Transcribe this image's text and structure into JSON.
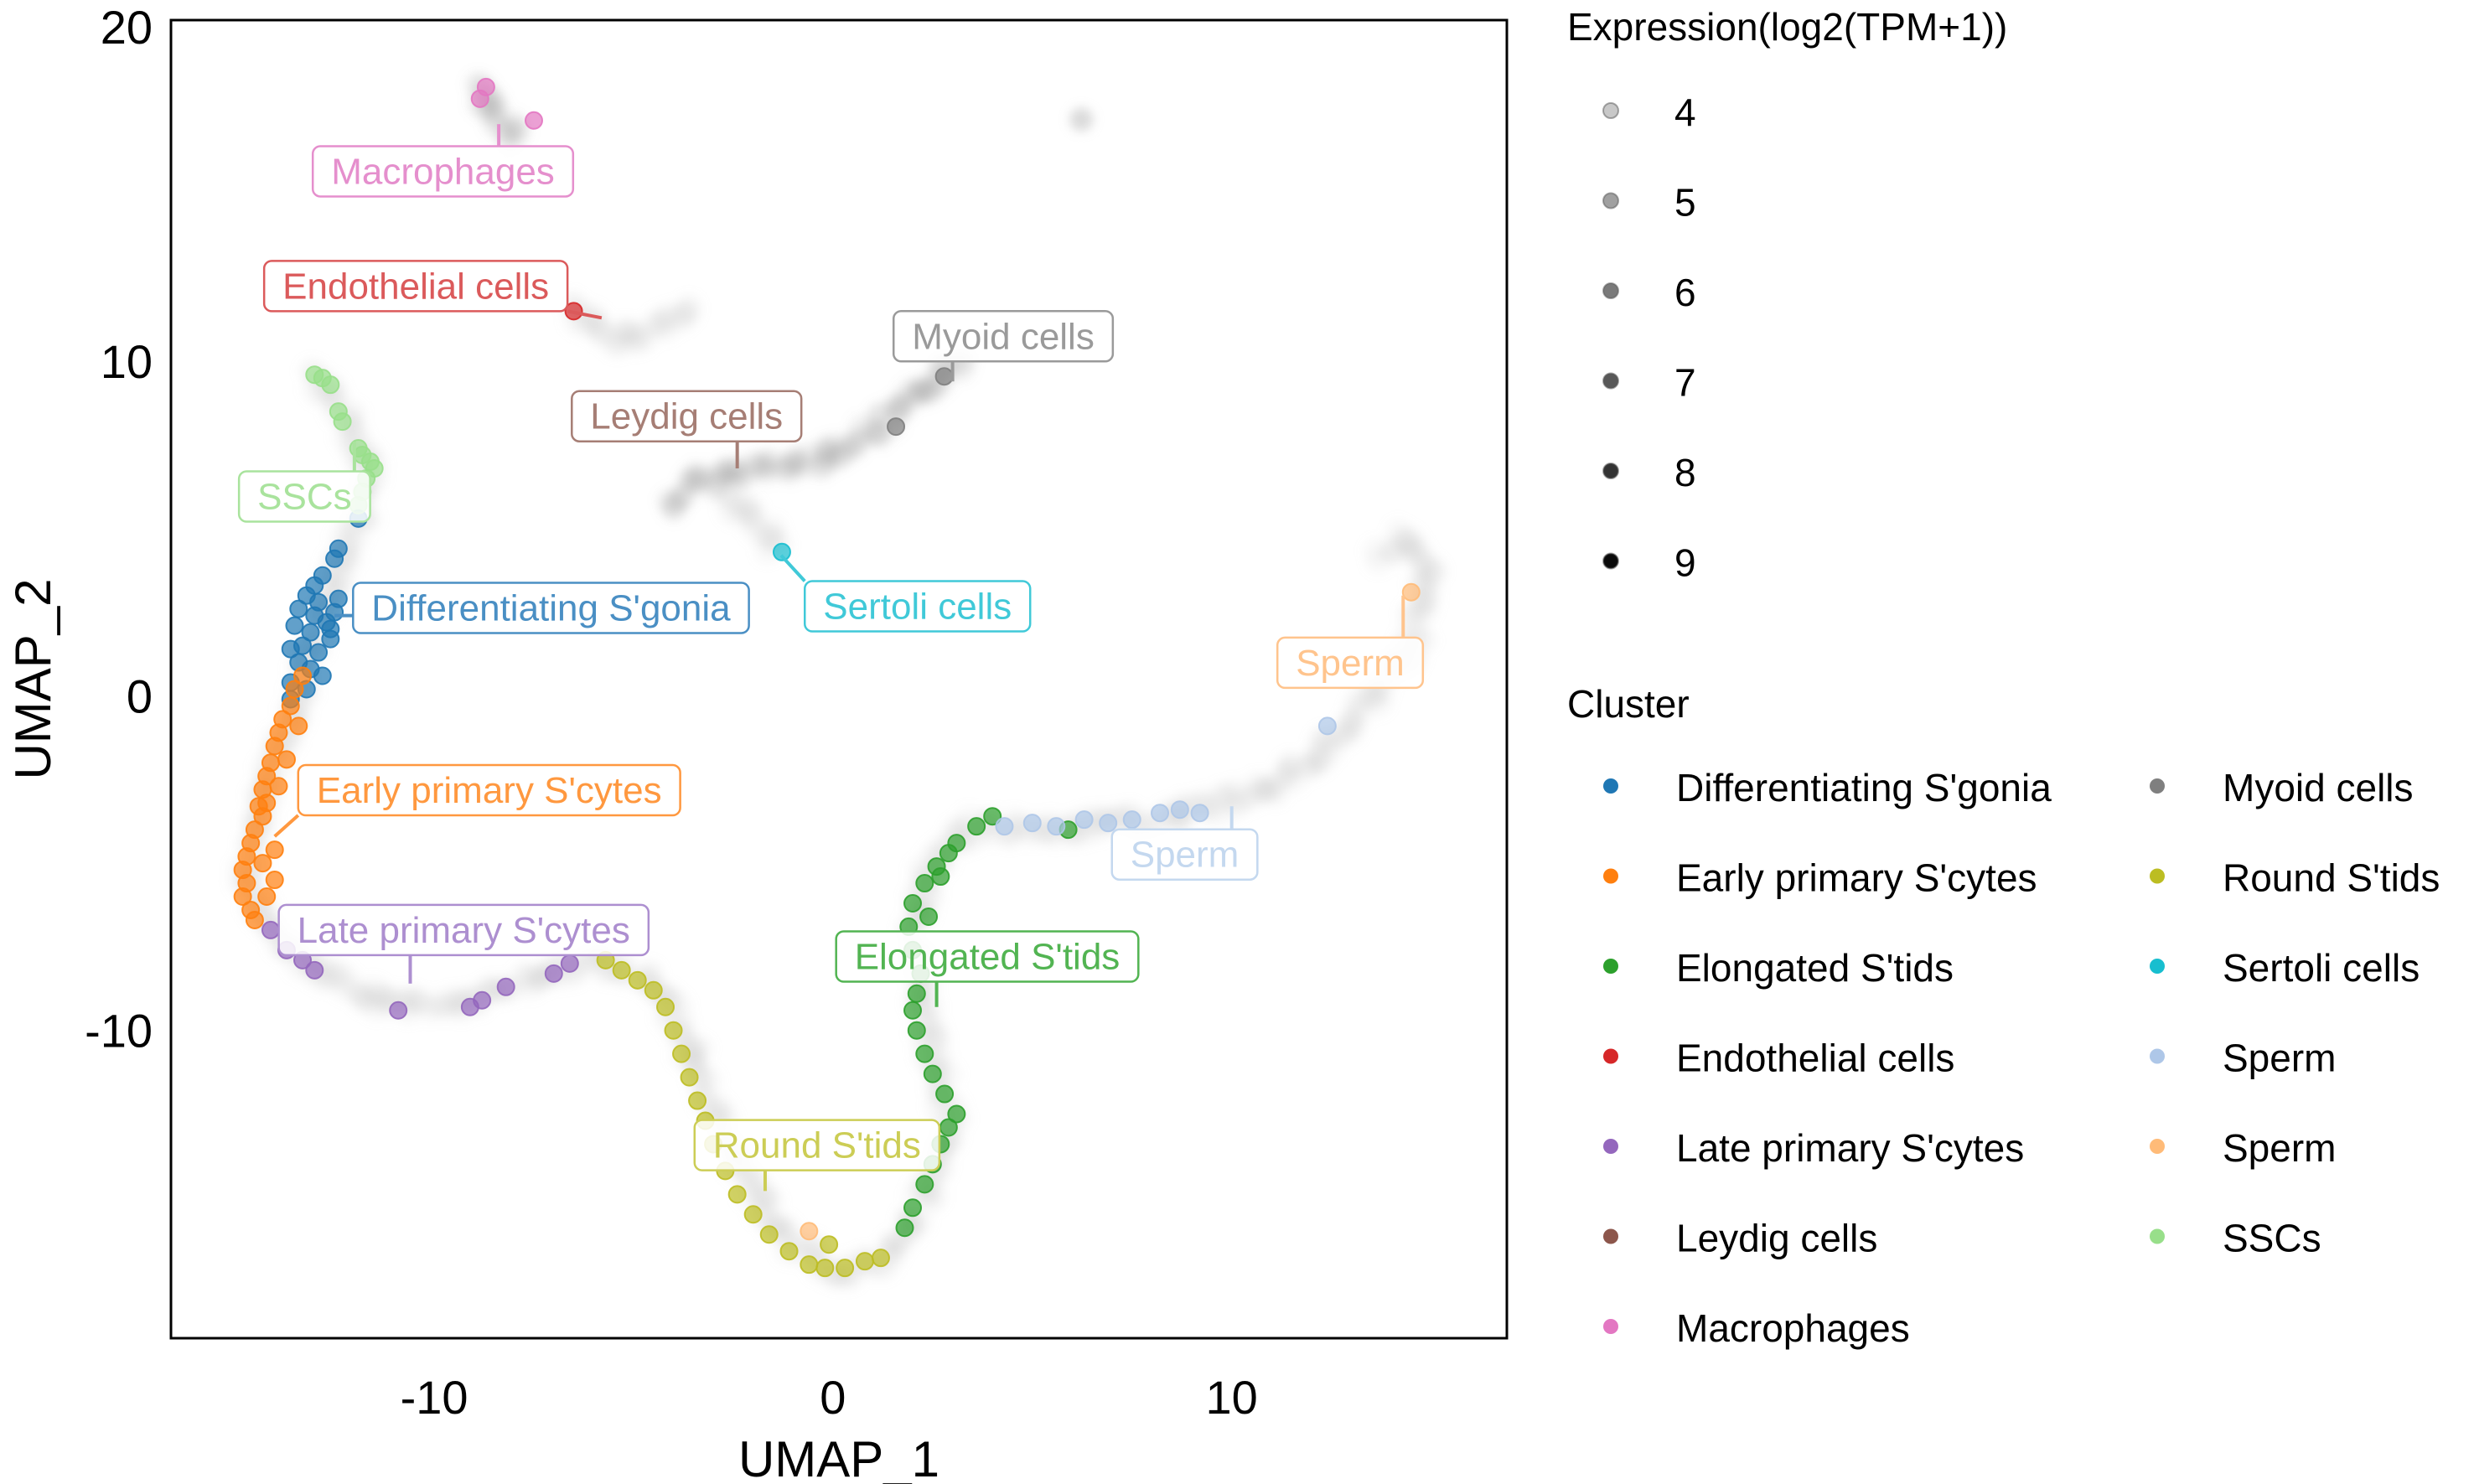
{
  "chart_data": {
    "type": "scatter",
    "title": "",
    "xlabel": "UMAP_1",
    "ylabel": "UMAP_2",
    "xlim": [
      -16.6,
      16.9
    ],
    "ylim": [
      -19.2,
      20.2
    ],
    "x_ticks": [
      -10,
      0,
      10
    ],
    "y_ticks": [
      -10,
      0,
      10,
      20
    ],
    "x_tick_labels": [
      "-10",
      "0",
      "10"
    ],
    "y_tick_labels": [
      "-10",
      "0",
      "10",
      "20"
    ],
    "grid": false,
    "legend_placement": "right",
    "size_legend": {
      "title": "Expression(log2(TPM+1))",
      "values": [
        4,
        5,
        6,
        7,
        8,
        9
      ],
      "labels": [
        "4",
        "5",
        "6",
        "7",
        "8",
        "9"
      ],
      "colors": [
        "#c8c8c8",
        "#a0a0a0",
        "#7a7a7a",
        "#585858",
        "#333333",
        "#0a0a0a"
      ]
    },
    "cluster_legend": {
      "title": "Cluster",
      "entries": [
        {
          "name": "Differentiating S'gonia",
          "color": "#1f77b4"
        },
        {
          "name": "Early primary S'cytes",
          "color": "#ff7f0e"
        },
        {
          "name": "Elongated S'tids",
          "color": "#2ca02c"
        },
        {
          "name": "Endothelial cells",
          "color": "#d62728"
        },
        {
          "name": "Late primary S'cytes",
          "color": "#9467bd"
        },
        {
          "name": "Leydig cells",
          "color": "#8c564b"
        },
        {
          "name": "Macrophages",
          "color": "#e377c2"
        },
        {
          "name": "Myoid cells",
          "color": "#7f7f7f"
        },
        {
          "name": "Round S'tids",
          "color": "#bcbd22"
        },
        {
          "name": "Sertoli cells",
          "color": "#17becf"
        },
        {
          "name": "Sperm",
          "color": "#aec7e8"
        },
        {
          "name": "Sperm",
          "color": "#ffbb78"
        },
        {
          "name": "SSCs",
          "color": "#98df8a"
        }
      ]
    },
    "background_trajectories": [
      {
        "name": "main-trajectory",
        "expression": 4,
        "points": [
          [
            -12.97,
            9.67
          ],
          [
            -12.3,
            8.4
          ],
          [
            -11.58,
            7.0
          ],
          [
            -11.9,
            5.35
          ],
          [
            -12.57,
            3.0
          ],
          [
            -13.37,
            0.19
          ],
          [
            -14.17,
            -2.63
          ],
          [
            -14.69,
            -5.45
          ],
          [
            -14.17,
            -6.85
          ],
          [
            -12.97,
            -8.26
          ],
          [
            -11.18,
            -9.2
          ],
          [
            -9.18,
            -9.2
          ],
          [
            -7.19,
            -8.26
          ],
          [
            -5.67,
            -7.93
          ],
          [
            -4.39,
            -8.73
          ],
          [
            -3.39,
            -11.08
          ],
          [
            -2.4,
            -13.9
          ],
          [
            -1.2,
            -16.24
          ],
          [
            0,
            -17.18
          ],
          [
            1.2,
            -16.95
          ],
          [
            2.2,
            -15.3
          ],
          [
            2.99,
            -12.96
          ],
          [
            2.59,
            -11.08
          ],
          [
            2.2,
            -8.73
          ],
          [
            2.08,
            -6.38
          ],
          [
            2.59,
            -4.74
          ],
          [
            3.59,
            -3.9
          ],
          [
            5.59,
            -4.04
          ],
          [
            8.78,
            -3.57
          ],
          [
            11.18,
            -2.63
          ],
          [
            13.17,
            -0.75
          ],
          [
            14.57,
            1.6
          ],
          [
            14.97,
            3.94
          ],
          [
            14.37,
            4.65
          ],
          [
            13.65,
            3.94
          ]
        ]
      },
      {
        "name": "leydig-myoid-trajectory",
        "expression": 5,
        "points": [
          [
            -3.99,
            5.6
          ],
          [
            -3.59,
            6.29
          ],
          [
            -2.79,
            6.6
          ],
          [
            -1.99,
            6.76
          ],
          [
            -1.0,
            6.9
          ],
          [
            0,
            7.23
          ],
          [
            1.4,
            8.17
          ],
          [
            2.79,
            9.58
          ],
          [
            3.39,
            10.14
          ]
        ]
      },
      {
        "name": "sertoli-branch",
        "expression": 4,
        "points": [
          [
            -2.6,
            6.0
          ],
          [
            -2.0,
            5.2
          ],
          [
            -1.28,
            4.32
          ]
        ]
      },
      {
        "name": "endothelial-trajectory",
        "expression": 4,
        "points": [
          [
            -6.47,
            11.69
          ],
          [
            -5.79,
            10.75
          ],
          [
            -4.79,
            10.75
          ],
          [
            -3.99,
            11.22
          ],
          [
            -3.51,
            11.69
          ]
        ]
      },
      {
        "name": "macrophage-trajectory",
        "expression": 5,
        "points": [
          [
            -8.78,
            18.26
          ],
          [
            -8.6,
            17.6
          ],
          [
            -8.38,
            17.09
          ],
          [
            -7.78,
            16.62
          ]
        ]
      },
      {
        "name": "isolated-cell",
        "expression": 4,
        "points": [
          [
            6.23,
            17.23
          ]
        ]
      }
    ],
    "series": [
      {
        "name": "Differentiating S'gonia",
        "color": "#1f77b4",
        "points": [
          [
            -12.4,
            4.4
          ],
          [
            -12.5,
            4.1
          ],
          [
            -12.8,
            3.6
          ],
          [
            -13.0,
            3.3
          ],
          [
            -13.2,
            3.0
          ],
          [
            -12.9,
            2.8
          ],
          [
            -13.4,
            2.6
          ],
          [
            -13.0,
            2.4
          ],
          [
            -12.7,
            2.2
          ],
          [
            -13.5,
            2.1
          ],
          [
            -13.1,
            1.9
          ],
          [
            -12.6,
            1.7
          ],
          [
            -13.3,
            1.5
          ],
          [
            -12.9,
            1.3
          ],
          [
            -13.4,
            1.0
          ],
          [
            -13.1,
            0.8
          ],
          [
            -12.8,
            0.6
          ],
          [
            -13.6,
            0.4
          ],
          [
            -12.4,
            2.9
          ],
          [
            -12.5,
            2.5
          ],
          [
            -12.6,
            2.0
          ],
          [
            -13.6,
            1.4
          ],
          [
            -13.2,
            0.2
          ],
          [
            -13.6,
            -0.1
          ],
          [
            -11.9,
            5.3
          ]
        ]
      },
      {
        "name": "Early primary S'cytes",
        "color": "#ff7f0e",
        "points": [
          [
            -13.3,
            0.6
          ],
          [
            -13.5,
            0.2
          ],
          [
            -13.6,
            -0.3
          ],
          [
            -13.8,
            -0.7
          ],
          [
            -13.9,
            -1.1
          ],
          [
            -14.0,
            -1.5
          ],
          [
            -14.1,
            -2.0
          ],
          [
            -14.2,
            -2.4
          ],
          [
            -14.3,
            -2.8
          ],
          [
            -14.2,
            -3.2
          ],
          [
            -14.3,
            -3.6
          ],
          [
            -14.5,
            -4.0
          ],
          [
            -14.6,
            -4.4
          ],
          [
            -14.7,
            -4.8
          ],
          [
            -14.8,
            -5.2
          ],
          [
            -14.7,
            -5.6
          ],
          [
            -14.8,
            -6.0
          ],
          [
            -14.6,
            -6.4
          ],
          [
            -14.5,
            -6.7
          ],
          [
            -14.2,
            -6.0
          ],
          [
            -14.0,
            -5.5
          ],
          [
            -14.0,
            -4.6
          ],
          [
            -13.9,
            -2.7
          ],
          [
            -13.7,
            -1.9
          ],
          [
            -13.4,
            -0.9
          ],
          [
            -14.4,
            -3.3
          ],
          [
            -14.3,
            -5.0
          ]
        ]
      },
      {
        "name": "Late primary S'cytes",
        "color": "#9467bd",
        "points": [
          [
            -14.1,
            -7.0
          ],
          [
            -13.7,
            -7.6
          ],
          [
            -13.3,
            -7.9
          ],
          [
            -13.0,
            -8.2
          ],
          [
            -10.9,
            -9.4
          ],
          [
            -9.1,
            -9.3
          ],
          [
            -8.8,
            -9.1
          ],
          [
            -8.2,
            -8.7
          ],
          [
            -7.0,
            -8.3
          ],
          [
            -6.6,
            -8.0
          ]
        ]
      },
      {
        "name": "Round S'tids",
        "color": "#bcbd22",
        "points": [
          [
            -5.7,
            -7.9
          ],
          [
            -5.3,
            -8.2
          ],
          [
            -4.9,
            -8.5
          ],
          [
            -4.5,
            -8.8
          ],
          [
            -4.2,
            -9.3
          ],
          [
            -4.0,
            -10.0
          ],
          [
            -3.8,
            -10.7
          ],
          [
            -3.6,
            -11.4
          ],
          [
            -3.4,
            -12.1
          ],
          [
            -3.2,
            -12.7
          ],
          [
            -3.0,
            -13.4
          ],
          [
            -2.7,
            -14.2
          ],
          [
            -2.4,
            -14.9
          ],
          [
            -2.0,
            -15.5
          ],
          [
            -1.6,
            -16.1
          ],
          [
            -1.1,
            -16.6
          ],
          [
            -0.6,
            -17.0
          ],
          [
            -0.2,
            -17.1
          ],
          [
            0.3,
            -17.1
          ],
          [
            0.8,
            -16.9
          ],
          [
            1.2,
            -16.8
          ],
          [
            -0.1,
            -16.4
          ]
        ]
      },
      {
        "name": "Elongated S'tids",
        "color": "#2ca02c",
        "points": [
          [
            1.8,
            -15.9
          ],
          [
            2.0,
            -15.3
          ],
          [
            2.3,
            -14.6
          ],
          [
            2.5,
            -14.0
          ],
          [
            2.7,
            -13.4
          ],
          [
            2.9,
            -12.9
          ],
          [
            3.1,
            -12.5
          ],
          [
            2.8,
            -11.9
          ],
          [
            2.5,
            -11.3
          ],
          [
            2.3,
            -10.7
          ],
          [
            2.1,
            -10.0
          ],
          [
            2.0,
            -9.4
          ],
          [
            2.1,
            -8.9
          ],
          [
            2.2,
            -8.3
          ],
          [
            2.0,
            -7.6
          ],
          [
            1.9,
            -6.9
          ],
          [
            2.0,
            -6.2
          ],
          [
            2.3,
            -5.6
          ],
          [
            2.6,
            -5.1
          ],
          [
            2.9,
            -4.7
          ],
          [
            3.1,
            -4.4
          ],
          [
            3.6,
            -3.9
          ],
          [
            4.0,
            -3.6
          ],
          [
            5.9,
            -4.0
          ],
          [
            2.4,
            -6.6
          ],
          [
            2.7,
            -5.4
          ]
        ]
      },
      {
        "name": "Sperm",
        "color": "#aec7e8",
        "points": [
          [
            4.3,
            -3.9
          ],
          [
            5.0,
            -3.8
          ],
          [
            5.6,
            -3.9
          ],
          [
            6.3,
            -3.7
          ],
          [
            6.9,
            -3.8
          ],
          [
            7.5,
            -3.7
          ],
          [
            8.2,
            -3.5
          ],
          [
            8.7,
            -3.4
          ],
          [
            9.2,
            -3.5
          ],
          [
            12.4,
            -0.9
          ]
        ]
      },
      {
        "name": "Sperm",
        "color": "#ffbb78",
        "points": [
          [
            14.5,
            3.1
          ],
          [
            -0.6,
            -16.0
          ]
        ]
      },
      {
        "name": "SSCs",
        "color": "#98df8a",
        "points": [
          [
            -13.0,
            9.6
          ],
          [
            -12.8,
            9.5
          ],
          [
            -12.6,
            9.3
          ],
          [
            -12.4,
            8.5
          ],
          [
            -12.3,
            8.2
          ],
          [
            -11.9,
            7.4
          ],
          [
            -11.8,
            7.2
          ],
          [
            -11.6,
            7.0
          ],
          [
            -11.5,
            6.8
          ],
          [
            -11.7,
            6.5
          ],
          [
            -11.8,
            6.1
          ],
          [
            -11.9,
            5.7
          ]
        ]
      },
      {
        "name": "Endothelial cells",
        "color": "#d62728",
        "points": [
          [
            -6.5,
            11.5
          ]
        ]
      },
      {
        "name": "Macrophages",
        "color": "#e377c2",
        "points": [
          [
            -8.7,
            18.2
          ],
          [
            -8.85,
            17.85
          ],
          [
            -7.5,
            17.2
          ]
        ]
      },
      {
        "name": "Myoid cells",
        "color": "#7f7f7f",
        "points": [
          [
            2.79,
            9.55
          ],
          [
            1.58,
            8.05
          ]
        ]
      },
      {
        "name": "Sertoli cells",
        "color": "#17becf",
        "points": [
          [
            -1.28,
            4.3
          ]
        ]
      },
      {
        "name": "Leydig cells",
        "color": "#8c564b",
        "points": []
      }
    ],
    "annotations": [
      {
        "text": "Macrophages",
        "color": "#e58fcd",
        "at": [
          -9.78,
          15.68
        ],
        "target": [
          -8.38,
          17.09
        ]
      },
      {
        "text": "Endothelial cells",
        "color": "#db5a5b",
        "at": [
          -10.46,
          12.25
        ],
        "target": [
          -5.8,
          11.3
        ]
      },
      {
        "text": "Myoid cells",
        "color": "#9a9a9a",
        "at": [
          4.27,
          10.75
        ],
        "target": [
          3.0,
          9.4
        ]
      },
      {
        "text": "Leydig cells",
        "color": "#a67e75",
        "at": [
          -3.67,
          8.36
        ],
        "target": [
          -2.4,
          6.8
        ]
      },
      {
        "text": "SSCs",
        "color": "#a9e39d",
        "at": [
          -13.25,
          5.96
        ],
        "target": [
          -12.0,
          7.6
        ]
      },
      {
        "text": "Differentiating S'gonia",
        "color": "#4a8fc4",
        "at": [
          -7.07,
          2.63
        ],
        "target": [
          -12.5,
          2.4
        ]
      },
      {
        "text": "Sertoli cells",
        "color": "#40c9d8",
        "at": [
          2.12,
          2.68
        ],
        "target": [
          -1.3,
          4.2
        ]
      },
      {
        "text": "Sperm",
        "color": "#ffc48d",
        "at": [
          12.97,
          0.99
        ],
        "target": [
          14.3,
          3.0
        ]
      },
      {
        "text": "Early primary S'cytes",
        "color": "#ff983f",
        "at": [
          -8.62,
          -2.82
        ],
        "target": [
          -14.0,
          -4.2
        ]
      },
      {
        "text": "Sperm",
        "color": "#c4d8ef",
        "at": [
          8.82,
          -4.74
        ],
        "target": [
          10.0,
          -3.3
        ]
      },
      {
        "text": "Late primary S'cytes",
        "color": "#ad8fd0",
        "at": [
          -9.26,
          -7.0
        ],
        "target": [
          -10.6,
          -8.6
        ]
      },
      {
        "text": "Elongated S'tids",
        "color": "#52b452",
        "at": [
          3.87,
          -7.79
        ],
        "target": [
          2.6,
          -9.3
        ]
      },
      {
        "text": "Round S'tids",
        "color": "#cccd55",
        "at": [
          -0.4,
          -13.43
        ],
        "target": [
          -1.7,
          -14.8
        ]
      }
    ]
  }
}
